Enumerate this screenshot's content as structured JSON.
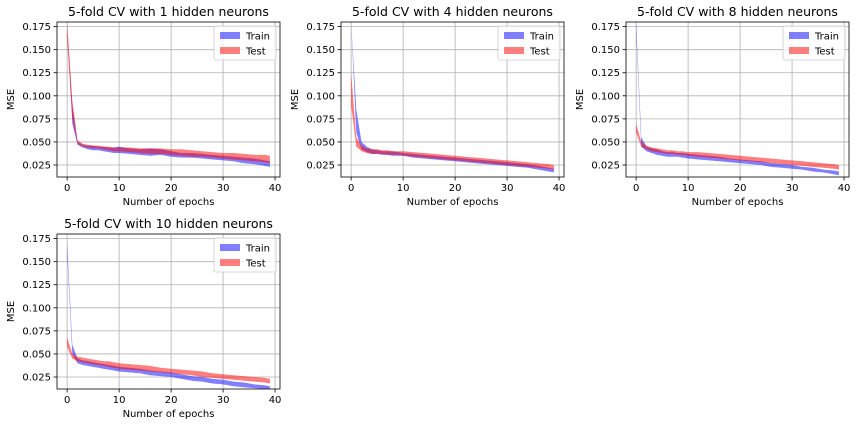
{
  "chart_data": [
    {
      "type": "line",
      "title": "5-fold CV with 1 hidden neurons",
      "xlabel": "Number of epochs",
      "ylabel": "MSE",
      "xlim": [
        -1.95,
        40.95
      ],
      "ylim": [
        0.012,
        0.18
      ],
      "xticks": [
        0,
        10,
        20,
        30,
        40
      ],
      "yticks": [
        0.025,
        0.05,
        0.075,
        0.1,
        0.125,
        0.15,
        0.175
      ],
      "yticklabels": [
        "0.025",
        "0.050",
        "0.075",
        "0.100",
        "0.125",
        "0.150",
        "0.175"
      ],
      "grid": true,
      "legend": "top-right",
      "series": [
        {
          "name": "Train",
          "color": "#0000ff",
          "alpha": 0.5,
          "x": [
            0,
            1,
            2,
            3,
            4,
            5,
            6,
            7,
            8,
            9,
            10,
            12,
            14,
            16,
            18,
            20,
            22,
            24,
            26,
            28,
            30,
            32,
            34,
            36,
            38,
            39
          ],
          "upper": [
            0.18,
            0.09,
            0.05,
            0.047,
            0.046,
            0.046,
            0.045,
            0.045,
            0.044,
            0.044,
            0.045,
            0.043,
            0.042,
            0.043,
            0.042,
            0.04,
            0.038,
            0.038,
            0.037,
            0.036,
            0.035,
            0.034,
            0.033,
            0.032,
            0.03,
            0.029
          ],
          "lower": [
            0.18,
            0.07,
            0.047,
            0.044,
            0.042,
            0.041,
            0.041,
            0.04,
            0.039,
            0.038,
            0.038,
            0.037,
            0.036,
            0.035,
            0.036,
            0.034,
            0.033,
            0.033,
            0.032,
            0.031,
            0.03,
            0.029,
            0.027,
            0.026,
            0.024,
            0.023
          ]
        },
        {
          "name": "Test",
          "color": "#ff0000",
          "alpha": 0.5,
          "x": [
            0,
            1,
            2,
            3,
            4,
            5,
            6,
            7,
            8,
            9,
            10,
            12,
            14,
            16,
            18,
            20,
            22,
            24,
            26,
            28,
            30,
            32,
            34,
            36,
            38,
            39
          ],
          "upper": [
            0.18,
            0.095,
            0.052,
            0.048,
            0.047,
            0.046,
            0.046,
            0.045,
            0.045,
            0.044,
            0.044,
            0.044,
            0.043,
            0.043,
            0.043,
            0.042,
            0.042,
            0.041,
            0.04,
            0.039,
            0.038,
            0.038,
            0.037,
            0.036,
            0.036,
            0.035
          ],
          "lower": [
            0.16,
            0.075,
            0.048,
            0.045,
            0.044,
            0.043,
            0.043,
            0.042,
            0.041,
            0.04,
            0.04,
            0.039,
            0.038,
            0.037,
            0.037,
            0.036,
            0.035,
            0.034,
            0.034,
            0.033,
            0.032,
            0.031,
            0.03,
            0.029,
            0.028,
            0.027
          ]
        }
      ]
    },
    {
      "type": "line",
      "title": "5-fold CV with 4 hidden neurons",
      "xlabel": "Number of epochs",
      "ylabel": "MSE",
      "xlim": [
        -1.95,
        40.95
      ],
      "ylim": [
        0.012,
        0.18
      ],
      "xticks": [
        0,
        10,
        20,
        30,
        40
      ],
      "yticks": [
        0.025,
        0.05,
        0.075,
        0.1,
        0.125,
        0.15,
        0.175
      ],
      "yticklabels": [
        "0.025",
        "0.050",
        "0.075",
        "0.100",
        "0.125",
        "0.150",
        "0.175"
      ],
      "grid": true,
      "legend": "top-right",
      "series": [
        {
          "name": "Train",
          "color": "#0000ff",
          "alpha": 0.5,
          "x": [
            0,
            1,
            2,
            3,
            4,
            5,
            6,
            7,
            8,
            9,
            10,
            12,
            14,
            16,
            18,
            20,
            22,
            24,
            26,
            28,
            30,
            32,
            34,
            36,
            38,
            39
          ],
          "upper": [
            0.18,
            0.085,
            0.05,
            0.045,
            0.042,
            0.041,
            0.04,
            0.04,
            0.04,
            0.039,
            0.038,
            0.037,
            0.036,
            0.035,
            0.034,
            0.033,
            0.032,
            0.031,
            0.03,
            0.029,
            0.028,
            0.027,
            0.026,
            0.024,
            0.022,
            0.021
          ],
          "lower": [
            0.18,
            0.06,
            0.042,
            0.039,
            0.037,
            0.037,
            0.036,
            0.036,
            0.035,
            0.035,
            0.035,
            0.033,
            0.032,
            0.031,
            0.03,
            0.029,
            0.028,
            0.027,
            0.026,
            0.025,
            0.024,
            0.023,
            0.022,
            0.02,
            0.018,
            0.017
          ]
        },
        {
          "name": "Test",
          "color": "#ff0000",
          "alpha": 0.5,
          "x": [
            0,
            1,
            2,
            3,
            4,
            5,
            6,
            7,
            8,
            9,
            10,
            12,
            14,
            16,
            18,
            20,
            22,
            24,
            26,
            28,
            30,
            32,
            34,
            36,
            38,
            39
          ],
          "upper": [
            0.125,
            0.055,
            0.046,
            0.043,
            0.042,
            0.042,
            0.041,
            0.041,
            0.04,
            0.04,
            0.04,
            0.039,
            0.038,
            0.037,
            0.036,
            0.035,
            0.034,
            0.033,
            0.032,
            0.031,
            0.03,
            0.029,
            0.028,
            0.027,
            0.026,
            0.025
          ],
          "lower": [
            0.09,
            0.045,
            0.04,
            0.038,
            0.037,
            0.037,
            0.037,
            0.036,
            0.036,
            0.036,
            0.035,
            0.034,
            0.033,
            0.032,
            0.031,
            0.03,
            0.029,
            0.028,
            0.027,
            0.026,
            0.025,
            0.024,
            0.023,
            0.022,
            0.021,
            0.02
          ]
        }
      ]
    },
    {
      "type": "line",
      "title": "5-fold CV with 8 hidden neurons",
      "xlabel": "Number of epochs",
      "ylabel": "MSE",
      "xlim": [
        -1.95,
        40.95
      ],
      "ylim": [
        0.012,
        0.18
      ],
      "xticks": [
        0,
        10,
        20,
        30,
        40
      ],
      "yticks": [
        0.025,
        0.05,
        0.075,
        0.1,
        0.125,
        0.15,
        0.175
      ],
      "yticklabels": [
        "0.025",
        "0.050",
        "0.075",
        "0.100",
        "0.125",
        "0.150",
        "0.175"
      ],
      "grid": true,
      "legend": "top-right",
      "series": [
        {
          "name": "Train",
          "color": "#0000ff",
          "alpha": 0.5,
          "x": [
            0,
            1,
            2,
            3,
            4,
            5,
            6,
            7,
            8,
            9,
            10,
            12,
            14,
            16,
            18,
            20,
            22,
            24,
            26,
            28,
            30,
            32,
            34,
            36,
            38,
            39
          ],
          "upper": [
            0.18,
            0.055,
            0.045,
            0.043,
            0.042,
            0.04,
            0.039,
            0.039,
            0.038,
            0.038,
            0.037,
            0.036,
            0.035,
            0.034,
            0.032,
            0.031,
            0.03,
            0.029,
            0.027,
            0.026,
            0.025,
            0.023,
            0.022,
            0.02,
            0.019,
            0.018
          ],
          "lower": [
            0.17,
            0.045,
            0.04,
            0.038,
            0.036,
            0.035,
            0.034,
            0.034,
            0.034,
            0.033,
            0.032,
            0.031,
            0.03,
            0.029,
            0.028,
            0.027,
            0.026,
            0.025,
            0.023,
            0.022,
            0.021,
            0.02,
            0.018,
            0.017,
            0.015,
            0.014
          ]
        },
        {
          "name": "Test",
          "color": "#ff0000",
          "alpha": 0.5,
          "x": [
            0,
            1,
            2,
            3,
            4,
            5,
            6,
            7,
            8,
            9,
            10,
            12,
            14,
            16,
            18,
            20,
            22,
            24,
            26,
            28,
            30,
            32,
            34,
            36,
            38,
            39
          ],
          "upper": [
            0.07,
            0.05,
            0.046,
            0.044,
            0.043,
            0.042,
            0.041,
            0.041,
            0.04,
            0.04,
            0.039,
            0.039,
            0.038,
            0.037,
            0.036,
            0.035,
            0.034,
            0.033,
            0.032,
            0.031,
            0.03,
            0.029,
            0.028,
            0.027,
            0.026,
            0.025
          ],
          "lower": [
            0.06,
            0.045,
            0.042,
            0.04,
            0.039,
            0.038,
            0.037,
            0.037,
            0.036,
            0.036,
            0.035,
            0.034,
            0.033,
            0.032,
            0.031,
            0.03,
            0.029,
            0.028,
            0.027,
            0.026,
            0.025,
            0.024,
            0.023,
            0.022,
            0.021,
            0.02
          ]
        }
      ]
    },
    {
      "type": "line",
      "title": "5-fold CV with 10 hidden neurons",
      "xlabel": "Number of epochs",
      "ylabel": "MSE",
      "xlim": [
        -1.95,
        40.95
      ],
      "ylim": [
        0.012,
        0.18
      ],
      "xticks": [
        0,
        10,
        20,
        30,
        40
      ],
      "yticks": [
        0.025,
        0.05,
        0.075,
        0.1,
        0.125,
        0.15,
        0.175
      ],
      "yticklabels": [
        "0.025",
        "0.050",
        "0.075",
        "0.100",
        "0.125",
        "0.150",
        "0.175"
      ],
      "grid": true,
      "legend": "top-right",
      "series": [
        {
          "name": "Train",
          "color": "#0000ff",
          "alpha": 0.5,
          "x": [
            0,
            1,
            2,
            3,
            4,
            5,
            6,
            7,
            8,
            9,
            10,
            12,
            14,
            16,
            18,
            20,
            22,
            24,
            26,
            28,
            30,
            32,
            34,
            36,
            38,
            39
          ],
          "upper": [
            0.17,
            0.06,
            0.045,
            0.043,
            0.042,
            0.041,
            0.04,
            0.039,
            0.038,
            0.037,
            0.036,
            0.035,
            0.034,
            0.032,
            0.031,
            0.03,
            0.028,
            0.026,
            0.025,
            0.023,
            0.022,
            0.02,
            0.019,
            0.017,
            0.016,
            0.015
          ],
          "lower": [
            0.16,
            0.05,
            0.04,
            0.038,
            0.037,
            0.036,
            0.035,
            0.034,
            0.033,
            0.032,
            0.031,
            0.03,
            0.029,
            0.027,
            0.026,
            0.025,
            0.023,
            0.021,
            0.02,
            0.018,
            0.017,
            0.015,
            0.014,
            0.013,
            0.012,
            0.012
          ]
        },
        {
          "name": "Test",
          "color": "#ff0000",
          "alpha": 0.5,
          "x": [
            0,
            1,
            2,
            3,
            4,
            5,
            6,
            7,
            8,
            9,
            10,
            12,
            14,
            16,
            18,
            20,
            22,
            24,
            26,
            28,
            30,
            32,
            34,
            36,
            38,
            39
          ],
          "upper": [
            0.068,
            0.05,
            0.047,
            0.046,
            0.045,
            0.044,
            0.043,
            0.042,
            0.042,
            0.041,
            0.04,
            0.039,
            0.038,
            0.037,
            0.035,
            0.034,
            0.033,
            0.032,
            0.031,
            0.029,
            0.028,
            0.027,
            0.026,
            0.025,
            0.024,
            0.023
          ],
          "lower": [
            0.058,
            0.045,
            0.042,
            0.041,
            0.04,
            0.039,
            0.038,
            0.037,
            0.036,
            0.035,
            0.034,
            0.033,
            0.032,
            0.031,
            0.03,
            0.029,
            0.028,
            0.027,
            0.025,
            0.024,
            0.023,
            0.022,
            0.021,
            0.02,
            0.019,
            0.018
          ]
        }
      ]
    }
  ]
}
